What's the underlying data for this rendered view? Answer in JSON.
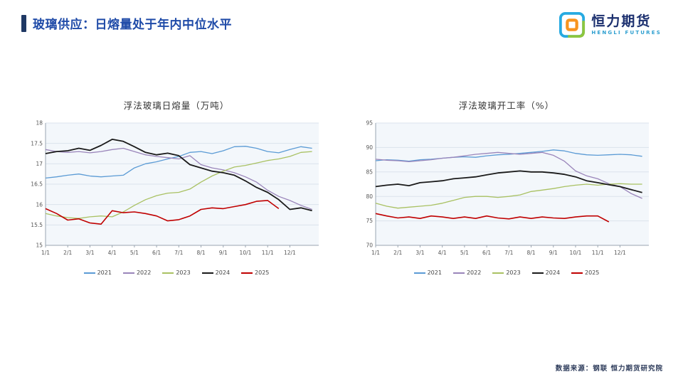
{
  "slide": {
    "title": "玻璃供应：日熔量处于年内中位水平",
    "footer": "数据来源：钢联  恒力期货研究院"
  },
  "logo": {
    "name_cn": "恒力期货",
    "name_en": "HENGLI FUTURES"
  },
  "colors": {
    "2021": "#5B9BD5",
    "2022": "#9A85BA",
    "2023": "#A9C162",
    "2024": "#1A1A1A",
    "2025": "#C00000",
    "accent": "#1F3864",
    "title_blue": "#1F4BA8",
    "plot_bg": "#F3F7FB",
    "grid": "#DBE3EC",
    "axis": "#9AA5B1"
  },
  "chart_data": [
    {
      "type": "line",
      "title": "浮法玻璃日熔量（万吨）",
      "ylabel": "",
      "xlabel": "",
      "ylim": [
        15,
        18
      ],
      "yticks": [
        15,
        15.5,
        16,
        16.5,
        17,
        17.5,
        18
      ],
      "xlim": [
        0,
        12.3
      ],
      "xticks": [
        "1/1",
        "2/1",
        "3/1",
        "4/1",
        "5/1",
        "6/1",
        "7/1",
        "8/1",
        "9/1",
        "10/1",
        "11/1",
        "12/1"
      ],
      "legend_position": "bottom",
      "grid": true,
      "series": [
        {
          "name": "2021",
          "x0": 0,
          "dx": 0.5,
          "values": [
            16.65,
            16.68,
            16.72,
            16.75,
            16.7,
            16.68,
            16.7,
            16.72,
            16.9,
            17.0,
            17.05,
            17.12,
            17.18,
            17.28,
            17.3,
            17.25,
            17.32,
            17.42,
            17.43,
            17.38,
            17.3,
            17.27,
            17.35,
            17.42,
            17.38
          ]
        },
        {
          "name": "2022",
          "x0": 0,
          "dx": 0.5,
          "values": [
            17.35,
            17.3,
            17.28,
            17.3,
            17.27,
            17.3,
            17.35,
            17.38,
            17.3,
            17.22,
            17.18,
            17.15,
            17.12,
            17.2,
            16.98,
            16.9,
            16.85,
            16.78,
            16.68,
            16.55,
            16.35,
            16.2,
            16.1,
            15.98,
            15.88
          ]
        },
        {
          "name": "2023",
          "x0": 0,
          "dx": 0.5,
          "values": [
            15.78,
            15.72,
            15.68,
            15.66,
            15.7,
            15.72,
            15.7,
            15.82,
            15.98,
            16.12,
            16.22,
            16.28,
            16.3,
            16.38,
            16.55,
            16.7,
            16.82,
            16.92,
            16.96,
            17.02,
            17.08,
            17.12,
            17.18,
            17.28,
            17.3
          ]
        },
        {
          "name": "2024",
          "x0": 0,
          "dx": 0.5,
          "values": [
            17.25,
            17.3,
            17.32,
            17.38,
            17.33,
            17.45,
            17.6,
            17.55,
            17.42,
            17.28,
            17.22,
            17.26,
            17.2,
            16.98,
            16.9,
            16.82,
            16.78,
            16.72,
            16.58,
            16.42,
            16.3,
            16.12,
            15.88,
            15.92,
            15.85
          ]
        },
        {
          "name": "2025",
          "x0": 0,
          "dx": 0.5,
          "values": [
            15.9,
            15.78,
            15.62,
            15.65,
            15.55,
            15.52,
            15.85,
            15.8,
            15.82,
            15.78,
            15.72,
            15.6,
            15.63,
            15.72,
            15.88,
            15.92,
            15.9,
            15.95,
            16.0,
            16.08,
            16.1,
            15.9
          ]
        }
      ]
    },
    {
      "type": "line",
      "title": "浮法玻璃开工率（%）",
      "ylabel": "",
      "xlabel": "",
      "ylim": [
        70,
        95
      ],
      "yticks": [
        70,
        75,
        80,
        85,
        90,
        95
      ],
      "xlim": [
        0,
        12.3
      ],
      "xticks": [
        "1/1",
        "2/1",
        "3/1",
        "4/1",
        "5/1",
        "6/1",
        "7/1",
        "8/1",
        "9/1",
        "10/1",
        "11/1",
        "12/1"
      ],
      "legend_position": "bottom",
      "grid": true,
      "series": [
        {
          "name": "2021",
          "x0": 0,
          "dx": 0.5,
          "values": [
            87.3,
            87.5,
            87.4,
            87.2,
            87.5,
            87.6,
            87.8,
            88.0,
            88.1,
            88.0,
            88.3,
            88.5,
            88.6,
            88.8,
            89.0,
            89.2,
            89.5,
            89.3,
            88.8,
            88.5,
            88.4,
            88.5,
            88.6,
            88.5,
            88.2
          ]
        },
        {
          "name": "2022",
          "x0": 0,
          "dx": 0.5,
          "values": [
            87.6,
            87.4,
            87.3,
            87.1,
            87.3,
            87.5,
            87.8,
            88.0,
            88.3,
            88.6,
            88.8,
            89.0,
            88.8,
            88.6,
            88.8,
            89.0,
            88.4,
            87.2,
            85.2,
            84.2,
            83.6,
            82.6,
            82.0,
            80.6,
            79.6
          ]
        },
        {
          "name": "2023",
          "x0": 0,
          "dx": 0.5,
          "values": [
            78.6,
            78.0,
            77.6,
            77.8,
            78.0,
            78.2,
            78.6,
            79.2,
            79.8,
            80.0,
            80.0,
            79.8,
            80.0,
            80.3,
            81.0,
            81.3,
            81.6,
            82.0,
            82.3,
            82.5,
            82.3,
            82.5,
            82.6,
            82.5,
            82.5
          ]
        },
        {
          "name": "2024",
          "x0": 0,
          "dx": 0.5,
          "values": [
            82.0,
            82.3,
            82.5,
            82.2,
            82.8,
            83.0,
            83.2,
            83.6,
            83.8,
            84.0,
            84.4,
            84.8,
            85.0,
            85.2,
            85.0,
            85.0,
            84.8,
            84.5,
            84.0,
            83.2,
            82.8,
            82.4,
            82.0,
            81.4,
            80.8
          ]
        },
        {
          "name": "2025",
          "x0": 0,
          "dx": 0.5,
          "values": [
            76.5,
            76.0,
            75.6,
            75.8,
            75.5,
            76.0,
            75.8,
            75.5,
            75.8,
            75.5,
            76.0,
            75.6,
            75.4,
            75.8,
            75.5,
            75.8,
            75.6,
            75.5,
            75.8,
            76.0,
            76.0,
            74.8
          ]
        }
      ]
    }
  ]
}
